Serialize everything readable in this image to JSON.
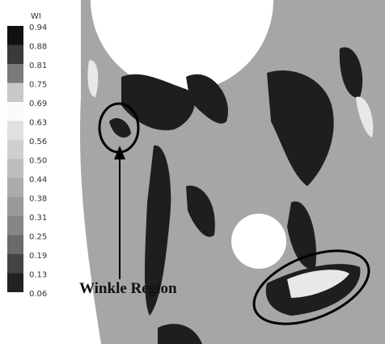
{
  "legend": {
    "title": "WI",
    "labels": [
      "0.94",
      "0.88",
      "0.81",
      "0.75",
      "0.69",
      "0.63",
      "0.56",
      "0.50",
      "0.44",
      "0.38",
      "0.31",
      "0.25",
      "0.19",
      "0.13",
      "0.06"
    ]
  },
  "annotation": {
    "text": "Winkle Region"
  }
}
